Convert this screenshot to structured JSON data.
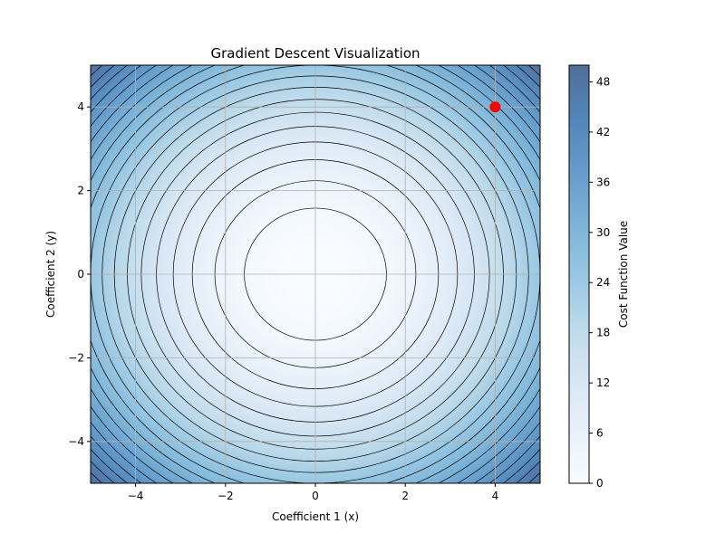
{
  "chart_data": {
    "type": "heatmap",
    "subtype": "contour",
    "title": "Gradient Descent Visualization",
    "xlabel": "Coefficient 1 (x)",
    "ylabel": "Coefficient 2 (y)",
    "xlim": [
      -5,
      5
    ],
    "ylim": [
      -5,
      5
    ],
    "xticks": [
      -4,
      -2,
      0,
      2,
      4
    ],
    "yticks": [
      -4,
      -2,
      0,
      2,
      4
    ],
    "grid": true,
    "function": "x^2 + y^2",
    "contour_levels": [
      2.5,
      5,
      7.5,
      10,
      12.5,
      15,
      17.5,
      20,
      22.5,
      25,
      27.5,
      30,
      32.5,
      35,
      37.5,
      40,
      42.5,
      45,
      47.5,
      50
    ],
    "colorbar": {
      "label": "Cost Function Value",
      "min": 0,
      "max": 50,
      "ticks": [
        0,
        6,
        12,
        18,
        24,
        30,
        36,
        42,
        48
      ],
      "colormap": "Blues",
      "low_color": "#f7fbff",
      "high_color": "#08306b",
      "alpha": 0.7
    },
    "points": [
      {
        "x": 4,
        "y": 4,
        "color": "#ff0000"
      }
    ]
  }
}
